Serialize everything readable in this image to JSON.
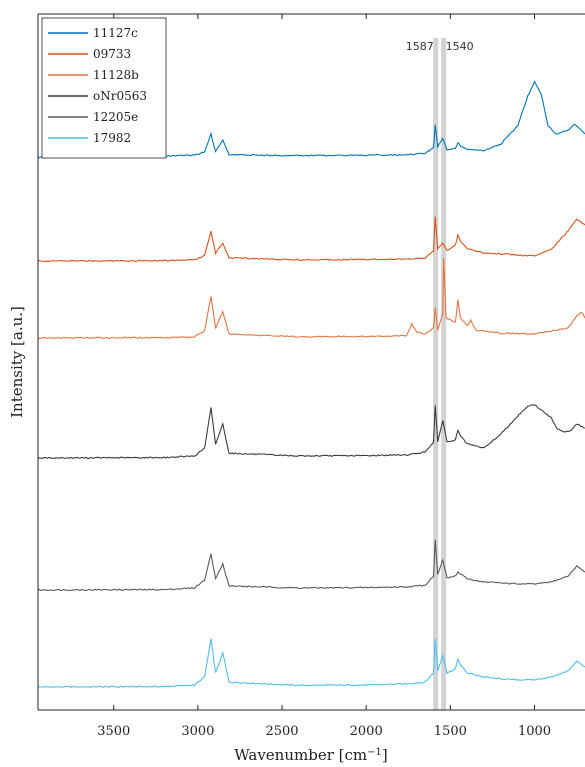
{
  "chart_data": {
    "type": "line",
    "xlabel": "Wavenumber [cm",
    "xlabel_sup": "−1",
    "xlabel_close": "]",
    "ylabel": "Intensity [a.u.]",
    "xlim": [
      3950,
      700
    ],
    "x_reversed": true,
    "x_ticks": [
      3500,
      3000,
      2500,
      2000,
      1500,
      1000
    ],
    "x_tick_labels": [
      "3500",
      "3000",
      "2500",
      "2000",
      "1500",
      "1000"
    ],
    "y_ticks_shown": false,
    "grid": false,
    "legend_position": "top-left",
    "annotations": [
      {
        "wavenumber": 1587,
        "label": "1587"
      },
      {
        "wavenumber": 1540,
        "label": "1540"
      }
    ],
    "series": [
      {
        "name": "11127c",
        "color": "#0072BD",
        "offset": 5,
        "points": [
          [
            3950,
            0.02
          ],
          [
            3200,
            0.05
          ],
          [
            3020,
            0.07
          ],
          [
            2960,
            0.15
          ],
          [
            2922,
            0.6
          ],
          [
            2895,
            0.16
          ],
          [
            2852,
            0.45
          ],
          [
            2815,
            0.08
          ],
          [
            2400,
            0.06
          ],
          [
            2000,
            0.07
          ],
          [
            1750,
            0.08
          ],
          [
            1650,
            0.12
          ],
          [
            1600,
            0.25
          ],
          [
            1590,
            0.82
          ],
          [
            1575,
            0.28
          ],
          [
            1545,
            0.5
          ],
          [
            1520,
            0.2
          ],
          [
            1470,
            0.25
          ],
          [
            1455,
            0.38
          ],
          [
            1440,
            0.3
          ],
          [
            1400,
            0.22
          ],
          [
            1300,
            0.18
          ],
          [
            1200,
            0.35
          ],
          [
            1100,
            0.8
          ],
          [
            1040,
            1.55
          ],
          [
            1000,
            1.9
          ],
          [
            960,
            1.6
          ],
          [
            920,
            0.8
          ],
          [
            870,
            0.6
          ],
          [
            800,
            0.7
          ],
          [
            760,
            0.85
          ],
          [
            700,
            0.6
          ]
        ]
      },
      {
        "name": "09733",
        "color": "#D95319",
        "offset": 4,
        "points": [
          [
            3950,
            0.0
          ],
          [
            3200,
            0.01
          ],
          [
            3020,
            0.03
          ],
          [
            2960,
            0.14
          ],
          [
            2922,
            0.75
          ],
          [
            2895,
            0.2
          ],
          [
            2852,
            0.45
          ],
          [
            2815,
            0.08
          ],
          [
            2400,
            0.03
          ],
          [
            2000,
            0.04
          ],
          [
            1750,
            0.05
          ],
          [
            1650,
            0.08
          ],
          [
            1600,
            0.25
          ],
          [
            1590,
            1.1
          ],
          [
            1575,
            0.3
          ],
          [
            1545,
            0.45
          ],
          [
            1520,
            0.25
          ],
          [
            1470,
            0.4
          ],
          [
            1455,
            0.65
          ],
          [
            1440,
            0.5
          ],
          [
            1400,
            0.3
          ],
          [
            1300,
            0.2
          ],
          [
            1200,
            0.18
          ],
          [
            1100,
            0.15
          ],
          [
            1000,
            0.12
          ],
          [
            900,
            0.3
          ],
          [
            800,
            0.75
          ],
          [
            750,
            1.05
          ],
          [
            700,
            0.9
          ]
        ]
      },
      {
        "name": "11128b",
        "color": "#E3753F",
        "offset": 3,
        "points": [
          [
            3950,
            0.0
          ],
          [
            3200,
            0.01
          ],
          [
            3020,
            0.03
          ],
          [
            2960,
            0.18
          ],
          [
            2922,
            1.05
          ],
          [
            2895,
            0.25
          ],
          [
            2852,
            0.65
          ],
          [
            2815,
            0.1
          ],
          [
            2400,
            0.03
          ],
          [
            2000,
            0.04
          ],
          [
            1760,
            0.06
          ],
          [
            1730,
            0.35
          ],
          [
            1700,
            0.15
          ],
          [
            1650,
            0.1
          ],
          [
            1600,
            0.25
          ],
          [
            1590,
            0.75
          ],
          [
            1575,
            0.2
          ],
          [
            1545,
            0.6
          ],
          [
            1540,
            2.0
          ],
          [
            1525,
            0.5
          ],
          [
            1470,
            0.4
          ],
          [
            1455,
            0.95
          ],
          [
            1440,
            0.5
          ],
          [
            1400,
            0.3
          ],
          [
            1380,
            0.45
          ],
          [
            1350,
            0.2
          ],
          [
            1300,
            0.18
          ],
          [
            1200,
            0.12
          ],
          [
            1000,
            0.1
          ],
          [
            800,
            0.25
          ],
          [
            750,
            0.55
          ],
          [
            720,
            0.65
          ],
          [
            700,
            0.5
          ]
        ]
      },
      {
        "name": "oNr0563",
        "color": "#3C3C3C",
        "offset": 2,
        "points": [
          [
            3950,
            0.0
          ],
          [
            3200,
            0.01
          ],
          [
            3020,
            0.05
          ],
          [
            2960,
            0.25
          ],
          [
            2922,
            1.25
          ],
          [
            2895,
            0.35
          ],
          [
            2852,
            0.85
          ],
          [
            2815,
            0.12
          ],
          [
            2400,
            0.05
          ],
          [
            2000,
            0.06
          ],
          [
            1750,
            0.08
          ],
          [
            1650,
            0.15
          ],
          [
            1600,
            0.4
          ],
          [
            1590,
            1.3
          ],
          [
            1575,
            0.4
          ],
          [
            1545,
            0.95
          ],
          [
            1520,
            0.4
          ],
          [
            1470,
            0.45
          ],
          [
            1455,
            0.7
          ],
          [
            1440,
            0.55
          ],
          [
            1400,
            0.35
          ],
          [
            1300,
            0.25
          ],
          [
            1200,
            0.6
          ],
          [
            1100,
            1.05
          ],
          [
            1040,
            1.3
          ],
          [
            1000,
            1.33
          ],
          [
            960,
            1.2
          ],
          [
            900,
            1.0
          ],
          [
            870,
            0.75
          ],
          [
            820,
            0.65
          ],
          [
            780,
            0.7
          ],
          [
            750,
            0.85
          ],
          [
            700,
            0.75
          ]
        ]
      },
      {
        "name": "12205e",
        "color": "#5A5A5A",
        "offset": 1,
        "points": [
          [
            3950,
            0.0
          ],
          [
            3200,
            0.01
          ],
          [
            3020,
            0.05
          ],
          [
            2960,
            0.25
          ],
          [
            2922,
            0.9
          ],
          [
            2895,
            0.3
          ],
          [
            2852,
            0.65
          ],
          [
            2815,
            0.1
          ],
          [
            2400,
            0.05
          ],
          [
            2000,
            0.06
          ],
          [
            1750,
            0.08
          ],
          [
            1650,
            0.12
          ],
          [
            1600,
            0.35
          ],
          [
            1590,
            1.25
          ],
          [
            1575,
            0.4
          ],
          [
            1545,
            0.75
          ],
          [
            1520,
            0.3
          ],
          [
            1470,
            0.35
          ],
          [
            1455,
            0.45
          ],
          [
            1440,
            0.4
          ],
          [
            1400,
            0.28
          ],
          [
            1300,
            0.2
          ],
          [
            1200,
            0.18
          ],
          [
            1100,
            0.15
          ],
          [
            1000,
            0.15
          ],
          [
            900,
            0.2
          ],
          [
            800,
            0.35
          ],
          [
            750,
            0.6
          ],
          [
            700,
            0.45
          ]
        ]
      },
      {
        "name": "17982",
        "color": "#4DBEEE",
        "offset": 0,
        "points": [
          [
            3950,
            0.0
          ],
          [
            3200,
            0.01
          ],
          [
            3020,
            0.05
          ],
          [
            2960,
            0.25
          ],
          [
            2922,
            1.2
          ],
          [
            2895,
            0.35
          ],
          [
            2852,
            0.85
          ],
          [
            2815,
            0.12
          ],
          [
            2400,
            0.04
          ],
          [
            2000,
            0.05
          ],
          [
            1750,
            0.08
          ],
          [
            1650,
            0.12
          ],
          [
            1600,
            0.35
          ],
          [
            1590,
            1.2
          ],
          [
            1575,
            0.4
          ],
          [
            1545,
            0.8
          ],
          [
            1520,
            0.35
          ],
          [
            1470,
            0.45
          ],
          [
            1455,
            0.7
          ],
          [
            1440,
            0.55
          ],
          [
            1400,
            0.35
          ],
          [
            1300,
            0.25
          ],
          [
            1200,
            0.2
          ],
          [
            1100,
            0.18
          ],
          [
            1000,
            0.18
          ],
          [
            900,
            0.25
          ],
          [
            800,
            0.4
          ],
          [
            750,
            0.65
          ],
          [
            700,
            0.5
          ]
        ]
      }
    ]
  }
}
